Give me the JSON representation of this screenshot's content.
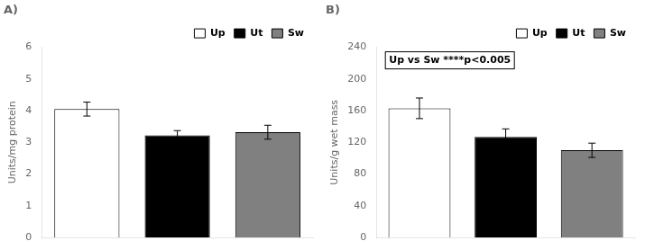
{
  "chart_data": [
    {
      "type": "bar",
      "title": "A)",
      "ylabel": "Units/mg protein",
      "categories": [
        "Up",
        "Ut",
        "Sw"
      ],
      "values": [
        4.05,
        3.22,
        3.32
      ],
      "errors": [
        0.22,
        0.15,
        0.22
      ],
      "colors": [
        "#ffffff",
        "#000000",
        "#808080"
      ],
      "ylim": [
        0,
        6
      ],
      "yticks": [
        0,
        1,
        2,
        3,
        4,
        5,
        6
      ],
      "grid": false,
      "legend": "upper right",
      "tick_labels": "y"
    },
    {
      "type": "bar",
      "title": "B)",
      "ylabel": "Units/g wet mass",
      "categories": [
        "Up",
        "Ut",
        "Sw"
      ],
      "values": [
        163,
        127,
        110
      ],
      "errors": [
        13,
        10,
        9
      ],
      "colors": [
        "#ffffff",
        "#000000",
        "#808080"
      ],
      "ylim": [
        0,
        240
      ],
      "yticks": [
        0,
        40,
        80,
        120,
        160,
        200,
        240
      ],
      "grid": false,
      "legend": "upper right",
      "tick_labels": "y",
      "annotation": "Up vs Sw ****p<0.005"
    }
  ]
}
